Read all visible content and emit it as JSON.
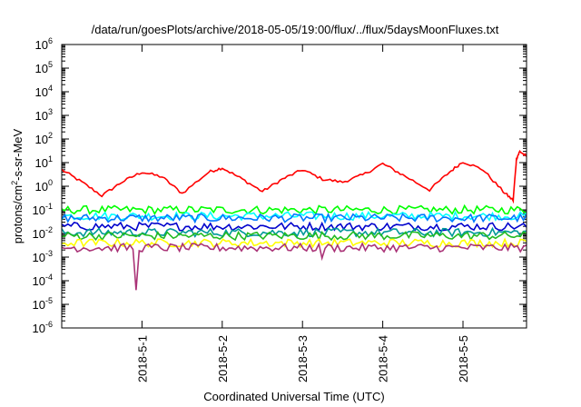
{
  "chart_data": {
    "type": "line",
    "title": "/data/run/goesPlots/archive/2018-05-05/19:00/flux/../flux/5daysMoonFluxes.txt",
    "xlabel": "Coordinated Universal Time (UTC)",
    "ylabel_parts": {
      "pre": "protons/cm",
      "sup": "2",
      "post": "-s-sr-MeV"
    },
    "x_scale": "date",
    "xlim": [
      "2018-04-30T00:00",
      "2018-05-05T19:00"
    ],
    "x_ticks": [
      "2018-5-1",
      "2018-5-2",
      "2018-5-3",
      "2018-5-4",
      "2018-5-5"
    ],
    "y_scale": "log",
    "ylim": [
      1e-06,
      1000000.0
    ],
    "y_ticks": [
      {
        "base": "10",
        "exp": "-6"
      },
      {
        "base": "10",
        "exp": "-5"
      },
      {
        "base": "10",
        "exp": "-4"
      },
      {
        "base": "10",
        "exp": "-3"
      },
      {
        "base": "10",
        "exp": "-2"
      },
      {
        "base": "10",
        "exp": "-1"
      },
      {
        "base": "10",
        "exp": "0"
      },
      {
        "base": "10",
        "exp": "1"
      },
      {
        "base": "10",
        "exp": "2"
      },
      {
        "base": "10",
        "exp": "3"
      },
      {
        "base": "10",
        "exp": "4"
      },
      {
        "base": "10",
        "exp": "5"
      },
      {
        "base": "10",
        "exp": "6"
      }
    ],
    "grid": false,
    "legend": "none",
    "series": [
      {
        "color": "#ff0000",
        "points": [
          [
            "2018-04-30T00:00",
            5
          ],
          [
            "2018-04-30T06:00",
            1.5
          ],
          [
            "2018-04-30T12:00",
            0.4
          ],
          [
            "2018-04-30T18:00",
            1.5
          ],
          [
            "2018-05-01T00:00",
            4
          ],
          [
            "2018-05-01T06:00",
            2.5
          ],
          [
            "2018-05-01T12:00",
            0.5
          ],
          [
            "2018-05-01T20:00",
            4
          ],
          [
            "2018-05-02T00:00",
            6
          ],
          [
            "2018-05-02T06:00",
            2
          ],
          [
            "2018-05-02T12:00",
            0.6
          ],
          [
            "2018-05-02T18:00",
            2
          ],
          [
            "2018-05-03T00:00",
            5
          ],
          [
            "2018-05-03T06:00",
            2
          ],
          [
            "2018-05-03T12:00",
            1.5
          ],
          [
            "2018-05-03T18:00",
            3
          ],
          [
            "2018-05-04T00:00",
            9
          ],
          [
            "2018-05-04T06:00",
            3
          ],
          [
            "2018-05-04T14:00",
            0.7
          ],
          [
            "2018-05-04T20:00",
            4
          ],
          [
            "2018-05-05T00:00",
            11
          ],
          [
            "2018-05-05T06:00",
            5
          ],
          [
            "2018-05-05T12:00",
            0.6
          ],
          [
            "2018-05-05T15:00",
            0.25
          ],
          [
            "2018-05-05T16:00",
            15
          ],
          [
            "2018-05-05T17:00",
            30
          ],
          [
            "2018-05-05T19:00",
            18
          ]
        ]
      },
      {
        "color": "#00ff00",
        "base": 0.1
      },
      {
        "color": "#00ffff",
        "base": 0.055
      },
      {
        "color": "#0077ff",
        "base": 0.045
      },
      {
        "color": "#0000cc",
        "base": 0.02
      },
      {
        "color": "#009999",
        "base": 0.011
      },
      {
        "color": "#22bb22",
        "base": 0.008
      },
      {
        "color": "#ffff00",
        "base": 0.004
      },
      {
        "color": "#aa3377",
        "base": 0.0025,
        "dips": [
          [
            "2018-04-30T22:00",
            4e-05
          ],
          [
            "2018-05-03T06:00",
            0.0009
          ]
        ]
      }
    ]
  }
}
